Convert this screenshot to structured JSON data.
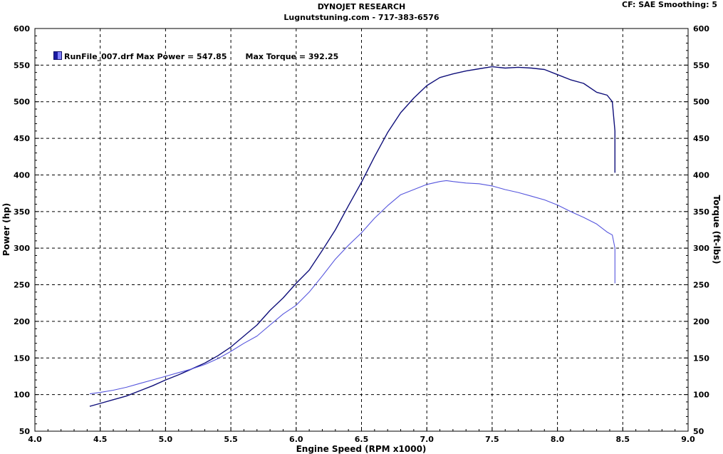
{
  "header": {
    "title": "DYNOJET RESEARCH",
    "subtitle": "Lugnutstuning.com - 717-383-6576",
    "settings": "CF: SAE  Smoothing: 5"
  },
  "legend": {
    "run_label": "RunFile_007.drf Max Power = 547.85",
    "torque_label": "Max Torque = 392.25"
  },
  "colors": {
    "power": "#0f0f7a",
    "torque": "#5555dd",
    "grid": "#000000"
  },
  "chart_data": {
    "type": "line",
    "xlabel": "Engine Speed (RPM x1000)",
    "ylabel_left": "Power (hp)",
    "ylabel_right": "Torque (ft-lbs)",
    "xlim": [
      4.0,
      9.0
    ],
    "ylim": [
      50,
      600
    ],
    "x_ticks": [
      "4.0",
      "4.5",
      "5.0",
      "5.5",
      "6.0",
      "6.5",
      "7.0",
      "7.5",
      "8.0",
      "8.5",
      "9.0"
    ],
    "y_ticks": [
      "50",
      "100",
      "150",
      "200",
      "250",
      "300",
      "350",
      "400",
      "450",
      "500",
      "550",
      "600"
    ],
    "grid": true,
    "legend_position": "top-left",
    "series": [
      {
        "name": "Max Power = 547.85",
        "points": [
          [
            4.42,
            84
          ],
          [
            4.5,
            88
          ],
          [
            4.6,
            93
          ],
          [
            4.7,
            98
          ],
          [
            4.8,
            105
          ],
          [
            4.9,
            112
          ],
          [
            5.0,
            120
          ],
          [
            5.1,
            127
          ],
          [
            5.2,
            135
          ],
          [
            5.3,
            143
          ],
          [
            5.4,
            153
          ],
          [
            5.5,
            165
          ],
          [
            5.6,
            180
          ],
          [
            5.7,
            195
          ],
          [
            5.8,
            215
          ],
          [
            5.9,
            232
          ],
          [
            6.0,
            252
          ],
          [
            6.1,
            270
          ],
          [
            6.2,
            297
          ],
          [
            6.3,
            325
          ],
          [
            6.4,
            358
          ],
          [
            6.5,
            390
          ],
          [
            6.6,
            425
          ],
          [
            6.7,
            458
          ],
          [
            6.8,
            485
          ],
          [
            6.9,
            505
          ],
          [
            7.0,
            522
          ],
          [
            7.1,
            533
          ],
          [
            7.2,
            538
          ],
          [
            7.3,
            542
          ],
          [
            7.4,
            545
          ],
          [
            7.5,
            547.85
          ],
          [
            7.6,
            546
          ],
          [
            7.7,
            547
          ],
          [
            7.8,
            546
          ],
          [
            7.9,
            544
          ],
          [
            8.0,
            537
          ],
          [
            8.1,
            530
          ],
          [
            8.2,
            525
          ],
          [
            8.3,
            513
          ],
          [
            8.38,
            509
          ],
          [
            8.42,
            500
          ],
          [
            8.44,
            460
          ],
          [
            8.44,
            403
          ]
        ]
      },
      {
        "name": "Max Torque = 392.25",
        "points": [
          [
            4.42,
            101
          ],
          [
            4.5,
            103
          ],
          [
            4.6,
            106
          ],
          [
            4.7,
            110
          ],
          [
            4.8,
            115
          ],
          [
            4.9,
            120
          ],
          [
            5.0,
            125
          ],
          [
            5.1,
            130
          ],
          [
            5.2,
            135
          ],
          [
            5.3,
            141
          ],
          [
            5.4,
            149
          ],
          [
            5.5,
            159
          ],
          [
            5.6,
            170
          ],
          [
            5.7,
            180
          ],
          [
            5.8,
            195
          ],
          [
            5.9,
            210
          ],
          [
            6.0,
            222
          ],
          [
            6.1,
            240
          ],
          [
            6.2,
            262
          ],
          [
            6.3,
            285
          ],
          [
            6.4,
            304
          ],
          [
            6.5,
            321
          ],
          [
            6.6,
            341
          ],
          [
            6.7,
            358
          ],
          [
            6.8,
            373
          ],
          [
            6.9,
            380
          ],
          [
            7.0,
            387
          ],
          [
            7.1,
            391
          ],
          [
            7.15,
            392.25
          ],
          [
            7.2,
            391
          ],
          [
            7.3,
            389
          ],
          [
            7.4,
            388
          ],
          [
            7.5,
            385
          ],
          [
            7.6,
            380
          ],
          [
            7.7,
            376
          ],
          [
            7.8,
            371
          ],
          [
            7.9,
            366
          ],
          [
            8.0,
            359
          ],
          [
            8.1,
            350
          ],
          [
            8.2,
            342
          ],
          [
            8.3,
            333
          ],
          [
            8.38,
            322
          ],
          [
            8.42,
            318
          ],
          [
            8.44,
            300
          ],
          [
            8.44,
            252
          ]
        ]
      }
    ]
  }
}
